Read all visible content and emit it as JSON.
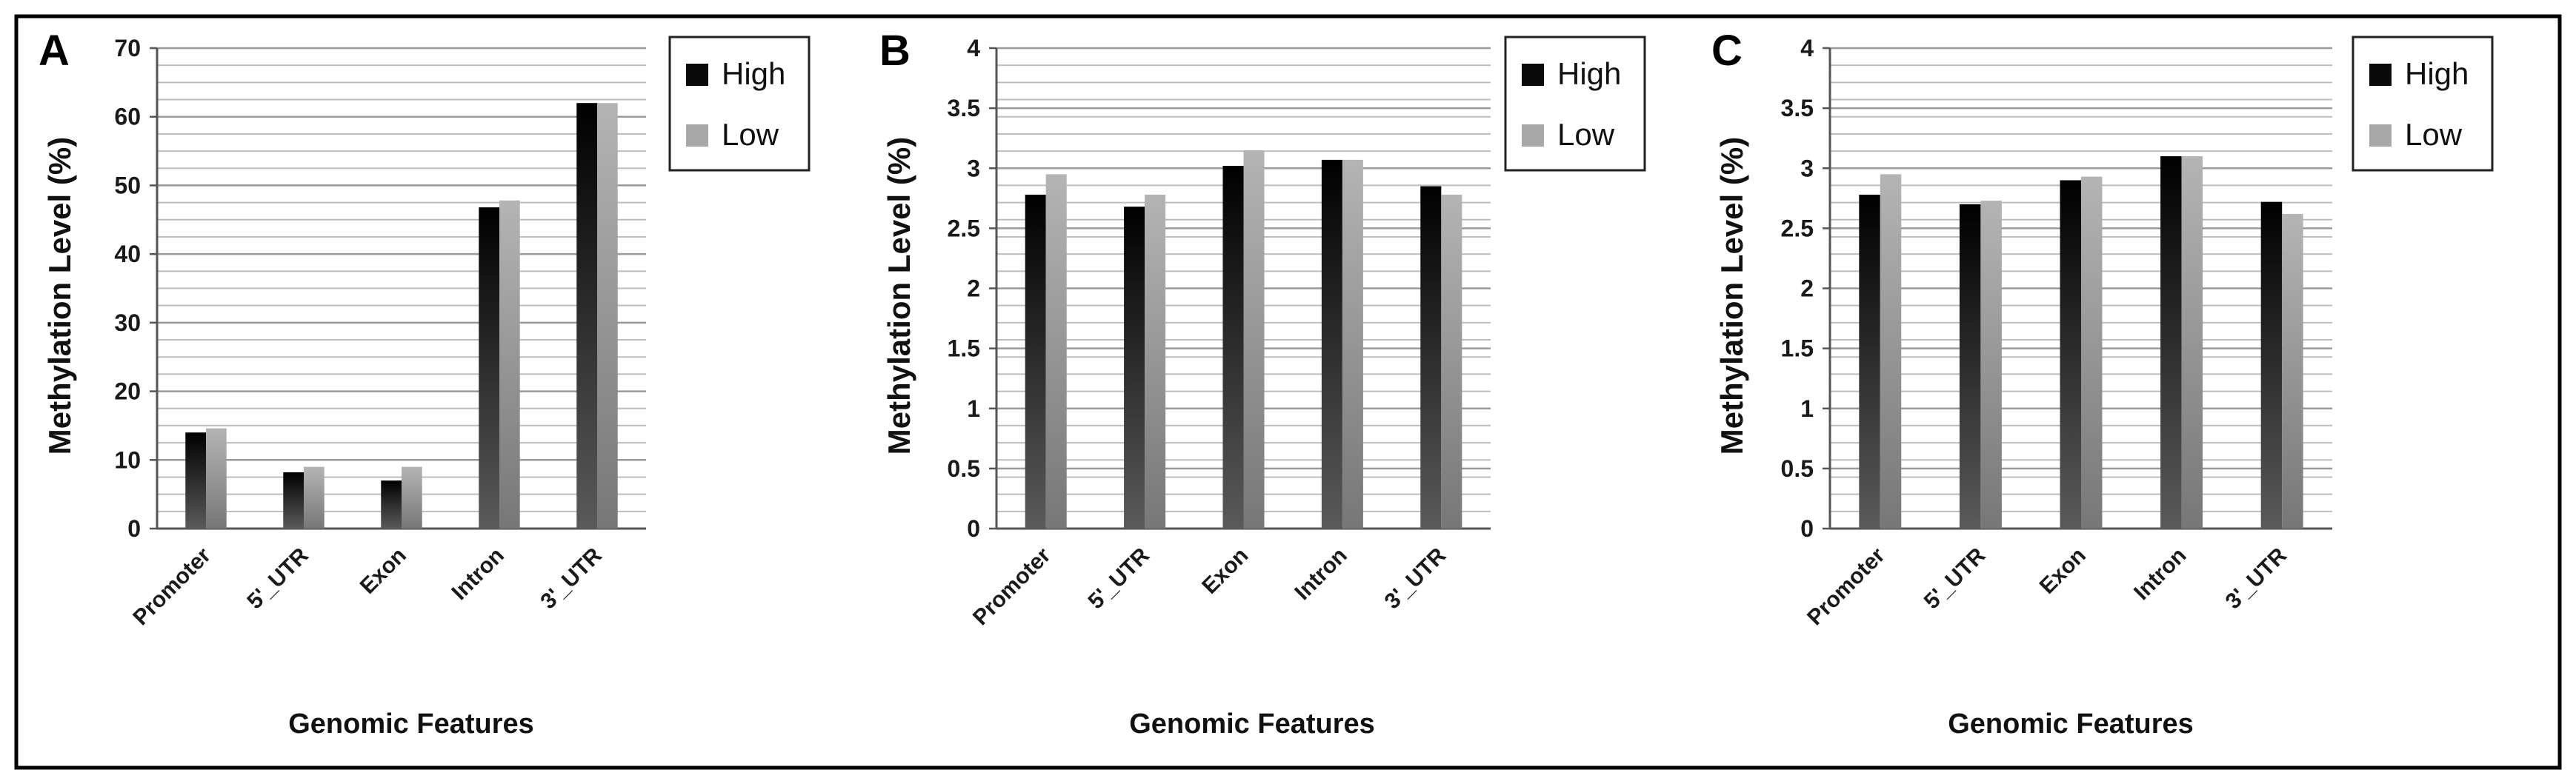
{
  "colors": {
    "high": "#0a0a0a",
    "low": "#a8a8a8",
    "grid": "#bdbdbd",
    "frame": "#000000",
    "axis_text": "#1a1a1a"
  },
  "chart_data": [
    {
      "panel_label": "A",
      "type": "bar",
      "xlabel": "Genomic Features",
      "ylabel": "Methylation Level  (%)",
      "categories": [
        "Promoter",
        "5'_UTR",
        "Exon",
        "Intron",
        "3'_UTR"
      ],
      "ylim": [
        0,
        70
      ],
      "yticks": [
        "0",
        "10",
        "20",
        "30",
        "40",
        "50",
        "60",
        "70"
      ],
      "grid": true,
      "legend": "top-right",
      "series": [
        {
          "name": "High",
          "values": [
            14,
            8.2,
            7,
            46.8,
            62
          ]
        },
        {
          "name": "Low",
          "values": [
            14.6,
            9,
            9,
            47.8,
            62
          ]
        }
      ]
    },
    {
      "panel_label": "B",
      "type": "bar",
      "xlabel": "Genomic Features",
      "ylabel": "Methylation Level  (%)",
      "categories": [
        "Promoter",
        "5'_UTR",
        "Exon",
        "Intron",
        "3'_UTR"
      ],
      "ylim": [
        0,
        4
      ],
      "yticks": [
        "0",
        "0.5",
        "1",
        "1.5",
        "2",
        "2.5",
        "3",
        "3.5",
        "4"
      ],
      "grid": true,
      "legend": "top-right",
      "series": [
        {
          "name": "High",
          "values": [
            2.78,
            2.68,
            3.02,
            3.07,
            2.85
          ]
        },
        {
          "name": "Low",
          "values": [
            2.95,
            2.78,
            3.15,
            3.07,
            2.78
          ]
        }
      ]
    },
    {
      "panel_label": "C",
      "type": "bar",
      "xlabel": "Genomic Features",
      "ylabel": "Methylation Level  (%)",
      "categories": [
        "Promoter",
        "5'_UTR",
        "Exon",
        "Intron",
        "3'_UTR"
      ],
      "ylim": [
        0,
        4
      ],
      "yticks": [
        "0",
        "0.5",
        "1",
        "1.5",
        "2",
        "2.5",
        "3",
        "3.5",
        "4"
      ],
      "grid": true,
      "legend": "top-right",
      "series": [
        {
          "name": "High",
          "values": [
            2.78,
            2.7,
            2.9,
            3.1,
            2.72
          ]
        },
        {
          "name": "Low",
          "values": [
            2.95,
            2.73,
            2.93,
            3.1,
            2.62
          ]
        }
      ]
    }
  ]
}
